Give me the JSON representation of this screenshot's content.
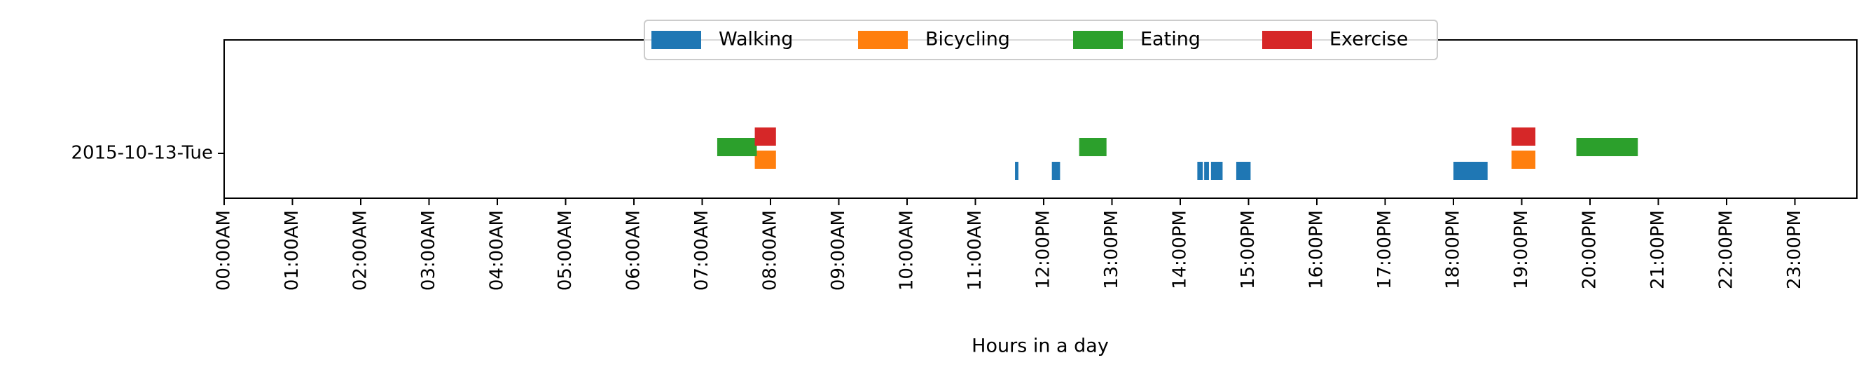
{
  "chart_data": {
    "type": "timeline",
    "title": "",
    "xlabel": "Hours in a day",
    "ylabel": "",
    "x_unit": "hours",
    "xlim": [
      0,
      24
    ],
    "row_label": "2015-10-13-Tue",
    "grid": false,
    "legend_position": "top-center",
    "x_tick_labels": [
      "00:00AM",
      "01:00AM",
      "02:00AM",
      "03:00AM",
      "04:00AM",
      "05:00AM",
      "06:00AM",
      "07:00AM",
      "08:00AM",
      "09:00AM",
      "10:00AM",
      "11:00AM",
      "12:00PM",
      "13:00PM",
      "14:00PM",
      "15:00PM",
      "16:00PM",
      "17:00PM",
      "18:00PM",
      "19:00PM",
      "20:00PM",
      "21:00PM",
      "22:00PM",
      "23:00PM"
    ],
    "series": [
      {
        "name": "Walking",
        "color": "#1f77b4",
        "intervals": [
          [
            11.58,
            11.63
          ],
          [
            12.12,
            12.24
          ],
          [
            14.25,
            14.33
          ],
          [
            14.35,
            14.42
          ],
          [
            14.45,
            14.62
          ],
          [
            14.82,
            15.03
          ],
          [
            18.0,
            18.5
          ]
        ]
      },
      {
        "name": "Bicycling",
        "color": "#ff7f0e",
        "intervals": [
          [
            7.77,
            8.08
          ],
          [
            18.85,
            19.2
          ]
        ]
      },
      {
        "name": "Eating",
        "color": "#2ca02c",
        "intervals": [
          [
            7.22,
            7.8
          ],
          [
            12.52,
            12.92
          ],
          [
            19.8,
            20.7
          ]
        ]
      },
      {
        "name": "Exercise",
        "color": "#d62728",
        "intervals": [
          [
            7.77,
            8.08
          ],
          [
            18.85,
            19.2
          ]
        ]
      }
    ]
  }
}
